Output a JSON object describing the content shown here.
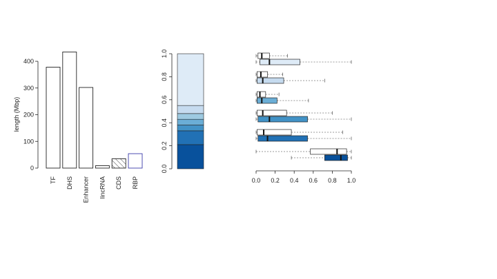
{
  "chart_data": [
    {
      "type": "bar",
      "ylabel": "length (Mbp)",
      "ylim": [
        0,
        450
      ],
      "y_ticks": [
        0,
        100,
        200,
        300,
        400
      ],
      "categories": [
        "TF",
        "DHS",
        "Enhancer",
        "lincRNA",
        "CDS",
        "RBP"
      ],
      "values": [
        378,
        435,
        302,
        9,
        35,
        54
      ],
      "bar_styles": [
        "plain",
        "plain",
        "plain",
        "plain",
        "hatched",
        "outlined-blue"
      ],
      "colors": {
        "bar_border": "#222222",
        "rbp_border": "#3a3aa8",
        "hatch": "#222222"
      }
    },
    {
      "type": "bar",
      "subtype": "stacked-single",
      "ylim": [
        0,
        1
      ],
      "y_ticks": [
        "0.0",
        "0.2",
        "0.4",
        "0.6",
        "0.8",
        "1.0"
      ],
      "segments": [
        {
          "from": 0.0,
          "to": 0.21,
          "color": "#08519c"
        },
        {
          "from": 0.21,
          "to": 0.33,
          "color": "#2171b5"
        },
        {
          "from": 0.33,
          "to": 0.38,
          "color": "#4292c6"
        },
        {
          "from": 0.38,
          "to": 0.43,
          "color": "#6baed6"
        },
        {
          "from": 0.43,
          "to": 0.48,
          "color": "#9ecae1"
        },
        {
          "from": 0.48,
          "to": 0.55,
          "color": "#c6dbef"
        },
        {
          "from": 0.55,
          "to": 1.0,
          "color": "#deebf7"
        }
      ]
    },
    {
      "type": "boxplot",
      "orientation": "horizontal",
      "xlim": [
        0,
        1
      ],
      "x_ticks": [
        "0.0",
        "0.2",
        "0.4",
        "0.6",
        "0.8",
        "1.0"
      ],
      "series": [
        {
          "group": 1,
          "fill": "#ffffff",
          "whisker_low": 0.0,
          "q1": 0.02,
          "median": 0.06,
          "q3": 0.14,
          "whisker_high": 0.33
        },
        {
          "group": 1,
          "fill": "#deebf7",
          "whisker_low": 0.0,
          "q1": 0.04,
          "median": 0.14,
          "q3": 0.46,
          "whisker_high": 1.0
        },
        {
          "group": 2,
          "fill": "#ffffff",
          "whisker_low": 0.0,
          "q1": 0.01,
          "median": 0.05,
          "q3": 0.12,
          "whisker_high": 0.28
        },
        {
          "group": 2,
          "fill": "#c6dbef",
          "whisker_low": 0.0,
          "q1": 0.01,
          "median": 0.07,
          "q3": 0.29,
          "whisker_high": 0.72
        },
        {
          "group": 3,
          "fill": "#ffffff",
          "whisker_low": 0.0,
          "q1": 0.01,
          "median": 0.04,
          "q3": 0.1,
          "whisker_high": 0.24
        },
        {
          "group": 3,
          "fill": "#6baed6",
          "whisker_low": 0.0,
          "q1": 0.01,
          "median": 0.06,
          "q3": 0.22,
          "whisker_high": 0.55
        },
        {
          "group": 4,
          "fill": "#ffffff",
          "whisker_low": 0.0,
          "q1": 0.01,
          "median": 0.07,
          "q3": 0.32,
          "whisker_high": 0.8
        },
        {
          "group": 4,
          "fill": "#4292c6",
          "whisker_low": 0.0,
          "q1": 0.02,
          "median": 0.14,
          "q3": 0.54,
          "whisker_high": 1.0
        },
        {
          "group": 5,
          "fill": "#ffffff",
          "whisker_low": 0.0,
          "q1": 0.01,
          "median": 0.08,
          "q3": 0.37,
          "whisker_high": 0.91
        },
        {
          "group": 5,
          "fill": "#2171b5",
          "whisker_low": 0.0,
          "q1": 0.02,
          "median": 0.12,
          "q3": 0.54,
          "whisker_high": 1.0
        },
        {
          "group": 6,
          "fill": "#ffffff",
          "whisker_low": 0.0,
          "q1": 0.57,
          "median": 0.85,
          "q3": 0.95,
          "whisker_high": 1.0
        },
        {
          "group": 6,
          "fill": "#08519c",
          "whisker_low": 0.37,
          "q1": 0.72,
          "median": 0.89,
          "q3": 0.96,
          "whisker_high": 1.0
        }
      ]
    }
  ]
}
